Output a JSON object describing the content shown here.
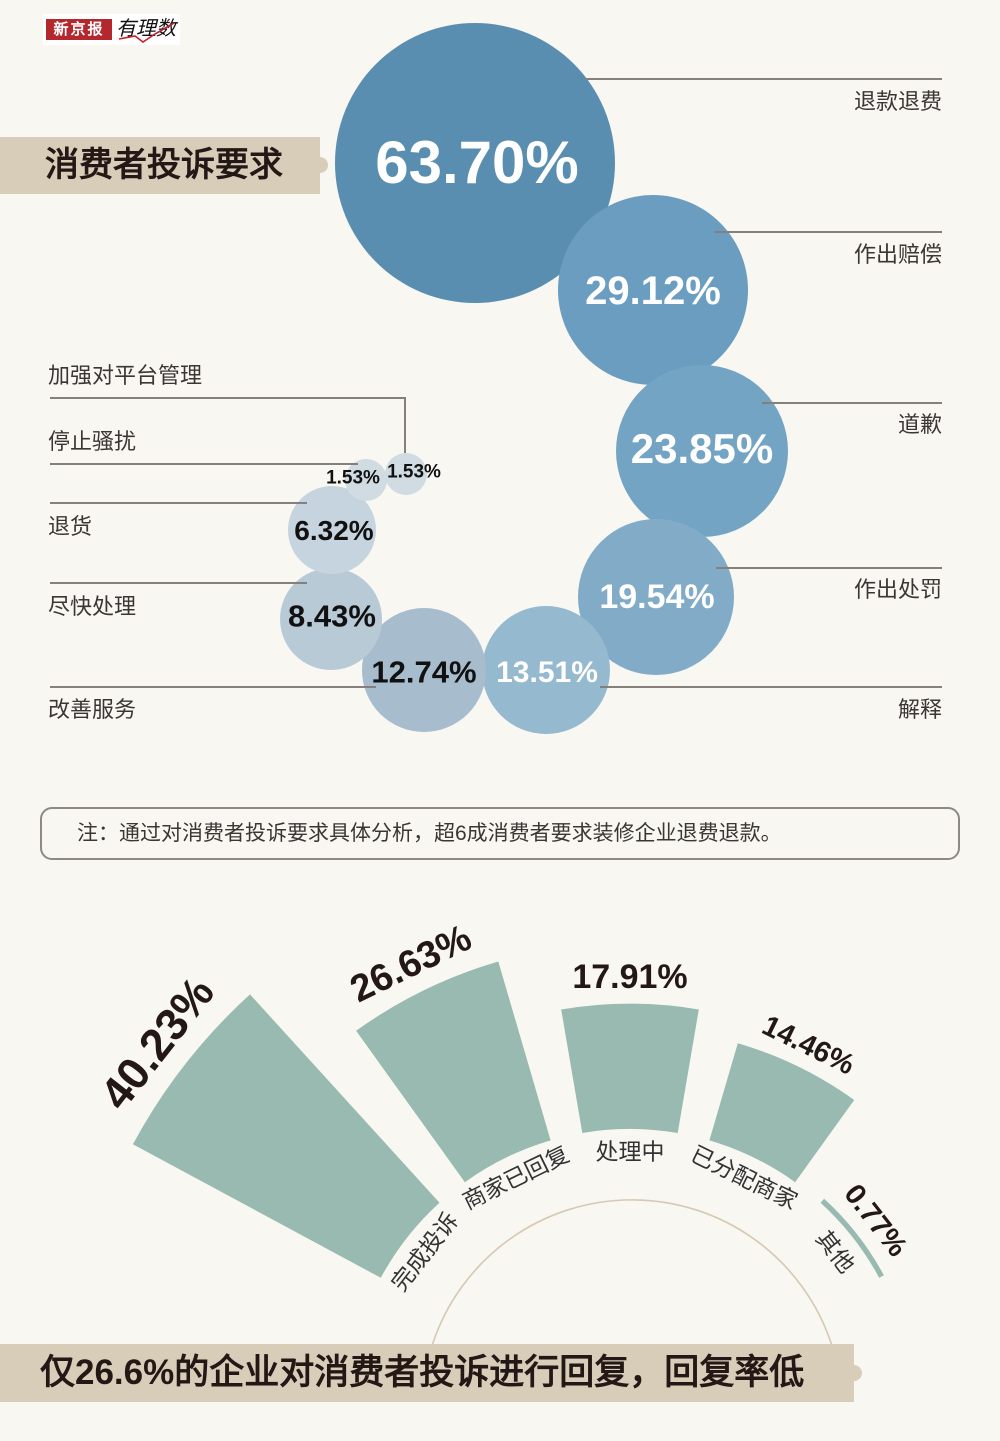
{
  "logo": {
    "brand": "新京报",
    "column": "有理数"
  },
  "section1": {
    "title": "消费者投诉要求",
    "note": "注：通过对消费者投诉要求具体分析，超6成消费者要求装修企业退费退款。"
  },
  "section2": {
    "title": "仅26.6%的企业对消费者投诉进行回复，回复率低"
  },
  "colors": {
    "background": "#f8f7f2",
    "banner": "#d8cdb9",
    "text_dark": "#231815",
    "brand_red": "#b3272d",
    "bar": "#98bab1",
    "arc": "#d6c9b3"
  },
  "chart_data": [
    {
      "type": "scatter",
      "subtype": "bubble",
      "title": "消费者投诉要求",
      "categories": [
        "退款退费",
        "作出赔偿",
        "道歉",
        "作出处罚",
        "解释",
        "改善服务",
        "尽快处理",
        "退货",
        "停止骚扰",
        "加强对平台管理"
      ],
      "values": [
        63.7,
        29.12,
        23.85,
        19.54,
        13.51,
        12.74,
        8.43,
        6.32,
        1.53,
        1.53
      ],
      "value_labels": [
        "63.70%",
        "29.12%",
        "23.85%",
        "19.54%",
        "13.51%",
        "12.74%",
        "8.43%",
        "6.32%",
        "1.53%",
        "1.53%"
      ],
      "unit": "%",
      "colors": [
        "#5a8eb1",
        "#6a9dbf",
        "#74a4c4",
        "#82abc8",
        "#95b9cf",
        "#a7bccc",
        "#b9cad7",
        "#c5d4de",
        "#d0dbe2",
        "#d0dbe2"
      ],
      "xlabel": "",
      "ylabel": "",
      "grid": false,
      "legend": "none",
      "note": "注：通过对消费者投诉要求具体分析，超6成消费者要求装修企业退费退款。"
    },
    {
      "type": "bar",
      "subtype": "radial",
      "title": "仅26.6%的企业对消费者投诉进行回复，回复率低",
      "categories": [
        "完成投诉",
        "商家已回复",
        "处理中",
        "已分配商家",
        "其他"
      ],
      "values": [
        40.23,
        26.63,
        17.91,
        14.46,
        0.77
      ],
      "value_labels": [
        "40.23%",
        "26.63%",
        "17.91%",
        "14.46%",
        "0.77%"
      ],
      "unit": "%",
      "color": "#98bab1",
      "xlabel": "",
      "ylabel": "",
      "grid": false,
      "legend": "none"
    }
  ]
}
